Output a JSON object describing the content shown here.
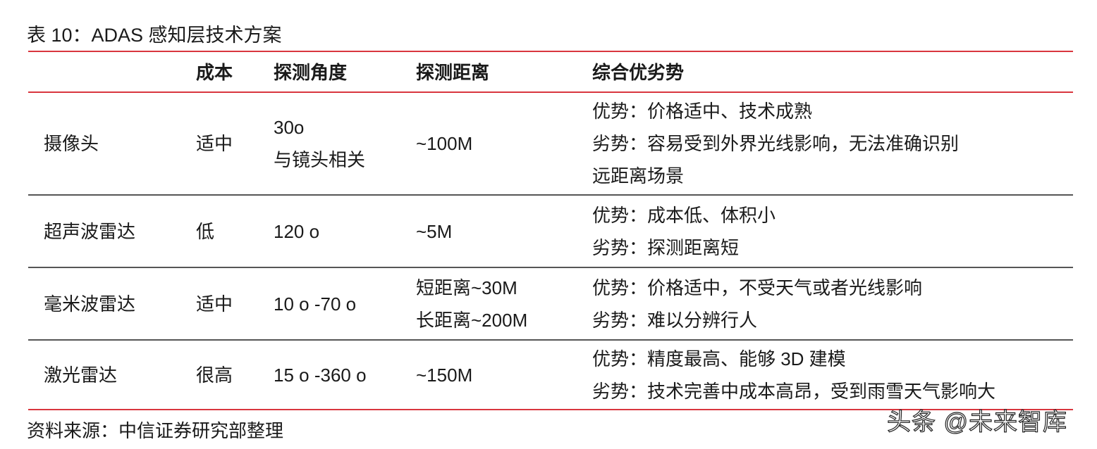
{
  "title": "表 10：ADAS 感知层技术方案",
  "table": {
    "headers": [
      "",
      "成本",
      "探测角度",
      "探测距离",
      "综合优劣势"
    ],
    "rows": [
      {
        "name": "摄像头",
        "cost": "适中",
        "angle": [
          "30o",
          "与镜头相关"
        ],
        "distance": [
          "~100M"
        ],
        "summary": [
          "优势：价格适中、技术成熟",
          "劣势：容易受到外界光线影响，无法准确识别",
          "远距离场景"
        ]
      },
      {
        "name": "超声波雷达",
        "cost": "低",
        "angle": [
          "120 o"
        ],
        "distance": [
          "~5M"
        ],
        "summary": [
          "优势：成本低、体积小",
          "劣势：探测距离短"
        ]
      },
      {
        "name": "毫米波雷达",
        "cost": "适中",
        "angle": [
          "10 o -70 o"
        ],
        "distance": [
          "短距离~30M",
          "长距离~200M"
        ],
        "summary": [
          "优势：价格适中，不受天气或者光线影响",
          "劣势：难以分辨行人"
        ]
      },
      {
        "name": "激光雷达",
        "cost": "很高",
        "angle": [
          "15 o -360 o"
        ],
        "distance": [
          "~150M"
        ],
        "summary": [
          "优势：精度最高、能够 3D 建模",
          "劣势：技术完善中成本高昂，受到雨雪天气影响大"
        ]
      }
    ]
  },
  "source": "资料来源：中信证券研究部整理",
  "watermark": "头条 @未来智库",
  "colors": {
    "rule_red": "#d9363e",
    "rule_gray": "#555555"
  }
}
